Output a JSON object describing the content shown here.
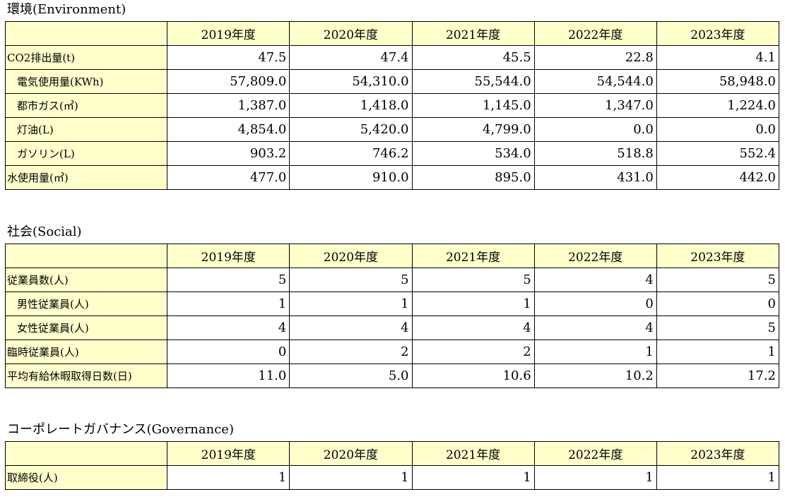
{
  "environment": {
    "title": "環境(Environment)",
    "years": [
      "2019年度",
      "2020年度",
      "2021年度",
      "2022年度",
      "2023年度"
    ],
    "rows": [
      {
        "label": "CO2排出量(t)",
        "indent": false,
        "values": [
          "47.5",
          "47.4",
          "45.5",
          "22.8",
          "4.1"
        ]
      },
      {
        "label": "電気使用量(KWh)",
        "indent": true,
        "values": [
          "57,809.0",
          "54,310.0",
          "55,544.0",
          "54,544.0",
          "58,948.0"
        ]
      },
      {
        "label": "都市ガス(㎥)",
        "indent": true,
        "values": [
          "1,387.0",
          "1,418.0",
          "1,145.0",
          "1,347.0",
          "1,224.0"
        ]
      },
      {
        "label": "灯油(L)",
        "indent": true,
        "values": [
          "4,854.0",
          "5,420.0",
          "4,799.0",
          "0.0",
          "0.0"
        ]
      },
      {
        "label": "ガソリン(L)",
        "indent": true,
        "values": [
          "903.2",
          "746.2",
          "534.0",
          "518.8",
          "552.4"
        ]
      },
      {
        "label": "水使用量(㎥)",
        "indent": false,
        "values": [
          "477.0",
          "910.0",
          "895.0",
          "431.0",
          "442.0"
        ]
      }
    ]
  },
  "social": {
    "title": "社会(Social)",
    "years": [
      "2019年度",
      "2020年度",
      "2021年度",
      "2022年度",
      "2023年度"
    ],
    "rows": [
      {
        "label": "従業員数(人)",
        "indent": false,
        "values": [
          "5",
          "5",
          "5",
          "4",
          "5"
        ]
      },
      {
        "label": "男性従業員(人)",
        "indent": true,
        "values": [
          "1",
          "1",
          "1",
          "0",
          "0"
        ]
      },
      {
        "label": "女性従業員(人)",
        "indent": true,
        "values": [
          "4",
          "4",
          "4",
          "4",
          "5"
        ]
      },
      {
        "label": "臨時従業員(人)",
        "indent": false,
        "values": [
          "0",
          "2",
          "2",
          "1",
          "1"
        ]
      },
      {
        "label": "平均有給休暇取得日数(日)",
        "indent": false,
        "values": [
          "11.0",
          "5.0",
          "10.6",
          "10.2",
          "17.2"
        ]
      }
    ]
  },
  "governance": {
    "title": "コーポレートガバナンス(Governance)",
    "years": [
      "2019年度",
      "2020年度",
      "2021年度",
      "2022年度",
      "2023年度"
    ],
    "rows": [
      {
        "label": "取締役(人)",
        "indent": false,
        "values": [
          "1",
          "1",
          "1",
          "1",
          "1"
        ]
      }
    ]
  }
}
